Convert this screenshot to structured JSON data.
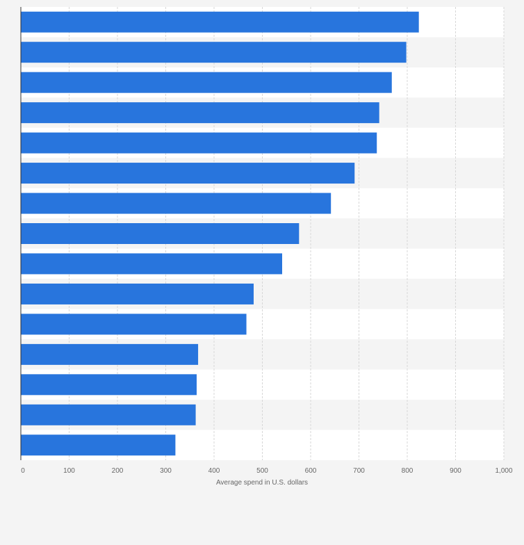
{
  "chart_data": {
    "type": "bar",
    "orientation": "horizontal",
    "categories": [
      "",
      "",
      "",
      "",
      "",
      "",
      "",
      "",
      "",
      "",
      "",
      "",
      "",
      "",
      ""
    ],
    "values": [
      824,
      798,
      768,
      742,
      737,
      691,
      642,
      576,
      541,
      482,
      467,
      367,
      364,
      362,
      320
    ],
    "title": "",
    "xlabel": "Average spend in U.S. dollars",
    "ylabel": "",
    "xlim": [
      0,
      1000
    ],
    "xticks": [
      0,
      100,
      200,
      300,
      400,
      500,
      600,
      700,
      800,
      900,
      1000
    ],
    "xtick_labels": [
      "0",
      "100",
      "200",
      "300",
      "400",
      "500",
      "600",
      "700",
      "800",
      "900",
      "1,000"
    ],
    "grid": true,
    "bar_color": "#2875dd",
    "band_colors": [
      "#ffffff",
      "#f4f4f4"
    ]
  }
}
